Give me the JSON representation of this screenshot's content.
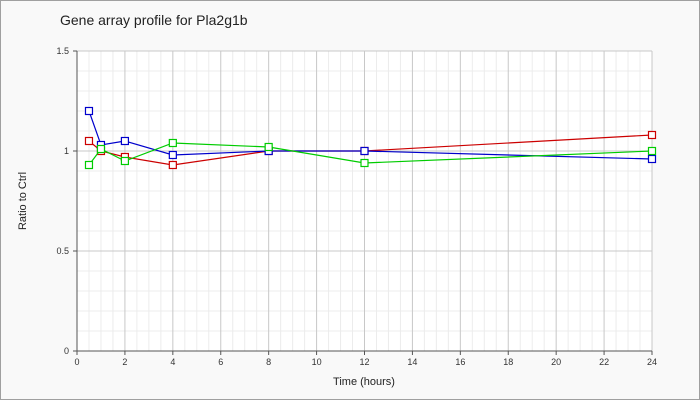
{
  "chart_data": {
    "type": "line",
    "title": "Gene array profile for Pla2g1b",
    "xlabel": "Time (hours)",
    "ylabel": "Ratio to Ctrl",
    "xlim": [
      0,
      24
    ],
    "ylim": [
      0,
      1.5
    ],
    "xticks": [
      0,
      2,
      4,
      6,
      8,
      10,
      12,
      14,
      16,
      18,
      20,
      22,
      24
    ],
    "yticks": [
      0,
      0.5,
      1,
      1.5
    ],
    "xtick_labels": [
      "0",
      "2",
      "4",
      "6",
      "8",
      "10",
      "12",
      "14",
      "16",
      "18",
      "20",
      "22",
      "24"
    ],
    "ytick_labels": [
      "0",
      "0.5",
      "1",
      "1.5"
    ],
    "grid": true,
    "x": [
      0.5,
      1,
      2,
      4,
      8,
      12,
      24
    ],
    "series": [
      {
        "color": "#cc0000",
        "marker": "square",
        "values": [
          1.05,
          1.0,
          0.97,
          0.93,
          1.0,
          1.0,
          1.08
        ]
      },
      {
        "color": "#0000cc",
        "marker": "square",
        "values": [
          1.2,
          1.03,
          1.05,
          0.98,
          1.0,
          1.0,
          0.96
        ]
      },
      {
        "color": "#00cc00",
        "marker": "square",
        "values": [
          0.93,
          1.01,
          0.95,
          1.04,
          1.02,
          0.94,
          1.0
        ]
      }
    ]
  }
}
